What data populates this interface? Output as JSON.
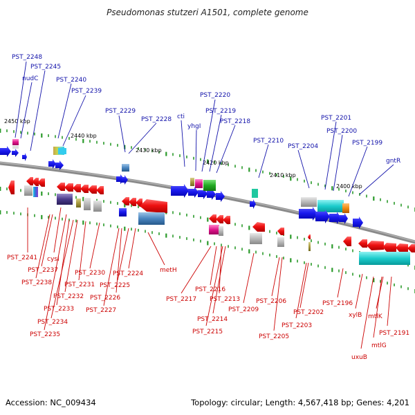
{
  "title": "Pseudomonas stutzeri A1501, complete genome",
  "footer": {
    "accession": "Accession: NC_009434",
    "topology": "Topology: circular; Length: 4,567,418 bp; Genes: 4,201"
  },
  "scale_labels": [
    "2450 kbp",
    "2440 kbp",
    "2430 kbp",
    "2420 kbp",
    "2410 kbp",
    "2400 kbp"
  ],
  "top_labels": [
    "PST_2248",
    "nudC",
    "PST_2245",
    "PST_2240",
    "PST_2239",
    "PST_2229",
    "PST_2228",
    "cti",
    "yhgI",
    "PST_2220",
    "PST_2219",
    "PST_2218",
    "PST_2210",
    "PST_2204",
    "PST_2201",
    "PST_2200",
    "PST_2199",
    "gntR"
  ],
  "bottom_labels": [
    "PST_2241",
    "cysI",
    "PST_2237",
    "PST_2238",
    "PST_2232",
    "PST_2233",
    "PST_2234",
    "PST_2235",
    "PST_2230",
    "PST_2231",
    "PST_2226",
    "PST_2227",
    "PST_2224",
    "PST_2225",
    "metH",
    "PST_2217",
    "PST_2216",
    "PST_2213",
    "PST_2214",
    "PST_2215",
    "PST_2209",
    "PST_2206",
    "PST_2205",
    "PST_2202",
    "PST_2203",
    "PST_2196",
    "xylB",
    "mtlK",
    "PST_2191",
    "mtlG",
    "uxuB"
  ],
  "colors": {
    "forward_strand": "#1a1aee",
    "reverse_strand": "#ee1111",
    "backbone": "#808080",
    "top_label": "#1111aa",
    "bottom_label": "#cc0000",
    "tick": "#2a9a2a"
  }
}
